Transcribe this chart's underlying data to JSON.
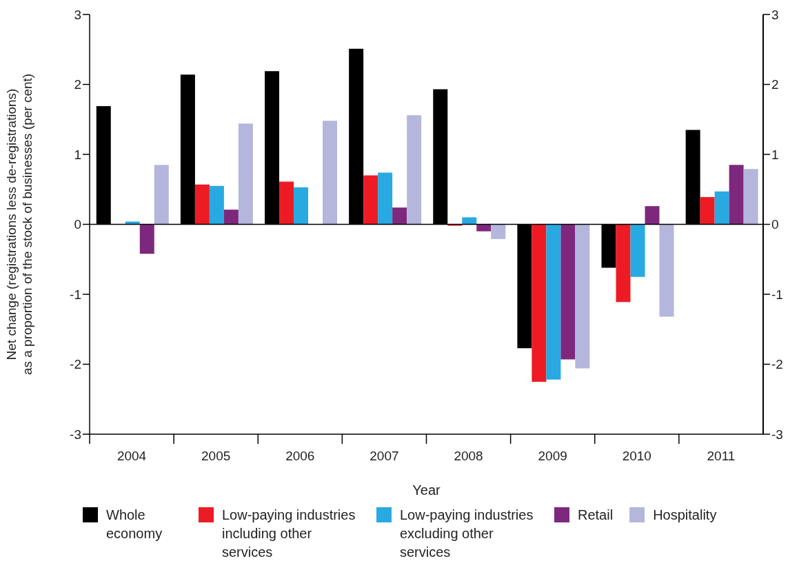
{
  "chart_data": {
    "type": "bar",
    "xlabel": "Year",
    "ylabel": "Net change (registrations less de-registrations) as a proportion of the stock of businesses (per cent)",
    "categories": [
      "2004",
      "2005",
      "2006",
      "2007",
      "2008",
      "2009",
      "2010",
      "2011"
    ],
    "series": [
      {
        "name": "Whole economy",
        "color": "#000000",
        "values": [
          1.69,
          2.14,
          2.19,
          2.51,
          1.93,
          -1.77,
          -0.62,
          1.35
        ]
      },
      {
        "name": "Low-paying industries including other services",
        "color": "#ed1c24",
        "values": [
          null,
          0.57,
          0.61,
          0.7,
          -0.02,
          -2.25,
          -1.11,
          0.39
        ]
      },
      {
        "name": "Low-paying industries excluding other services",
        "color": "#29a9e1",
        "values": [
          0.04,
          0.55,
          0.53,
          0.74,
          0.1,
          -2.22,
          -0.75,
          0.47
        ]
      },
      {
        "name": "Retail",
        "color": "#7d287d",
        "values": [
          -0.42,
          0.21,
          null,
          0.24,
          -0.1,
          -1.93,
          0.26,
          0.85
        ]
      },
      {
        "name": "Hospitality",
        "color": "#b4b6dc",
        "values": [
          0.85,
          1.44,
          1.48,
          1.56,
          -0.21,
          -2.06,
          -1.32,
          0.79
        ]
      }
    ],
    "ylim": [
      -3,
      3
    ],
    "yticks": [
      -3,
      -2,
      -1,
      0,
      1,
      2,
      3
    ],
    "y2lim": [
      -3,
      3
    ],
    "y2ticks": [
      -3,
      -2,
      -1,
      0,
      1,
      2,
      3
    ],
    "ref_lines": [
      {
        "axis": "y",
        "value": 0,
        "color": "#000000"
      }
    ],
    "legend": "bottom"
  }
}
